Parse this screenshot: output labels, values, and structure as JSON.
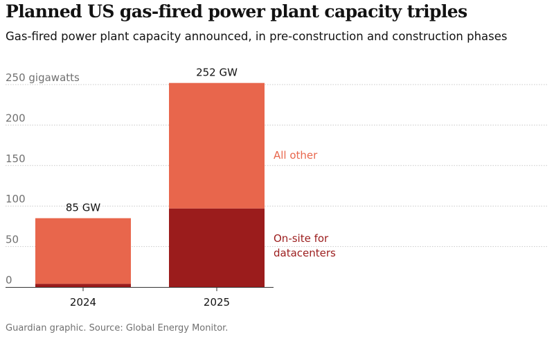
{
  "header": {
    "title": "Planned US gas-fired power plant capacity triples",
    "subtitle": "Gas-fired power plant capacity announced, in pre-construction and construction phases"
  },
  "footer": {
    "source": "Guardian graphic. Source: Global Energy Monitor."
  },
  "chart_data": {
    "type": "bar",
    "stacked": true,
    "title": "Planned US gas-fired power plant capacity triples",
    "subtitle": "Gas-fired power plant capacity announced, in pre-construction and construction phases",
    "xlabel": "",
    "ylabel": "gigawatts",
    "ylim": [
      0,
      250
    ],
    "yticks": [
      0,
      50,
      100,
      150,
      200,
      250
    ],
    "ytick_labels": [
      "0",
      "50",
      "100",
      "150",
      "200",
      "250 gigawatts"
    ],
    "grid": true,
    "categories": [
      "2024",
      "2025"
    ],
    "series": [
      {
        "name": "On-site for datacenters",
        "values": [
          4,
          97
        ],
        "color": "#9b1c1c"
      },
      {
        "name": "All other",
        "values": [
          81,
          155
        ],
        "color": "#e8664c"
      }
    ],
    "totals": [
      85,
      252
    ],
    "total_labels": [
      "85 GW",
      "252 GW"
    ],
    "legend": [
      {
        "label": "All other",
        "color": "#e8664c"
      },
      {
        "label": "On-site for\ndatacenters",
        "color": "#9b1c1c"
      }
    ],
    "legend_position": "right, inline with 2025 bar"
  }
}
